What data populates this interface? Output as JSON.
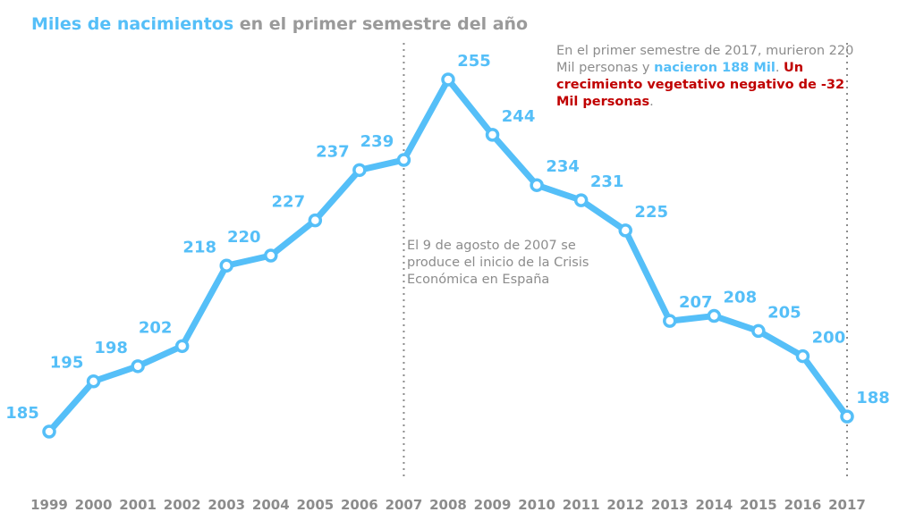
{
  "chart_data": {
    "type": "line",
    "title_highlight": "Miles de nacimientos",
    "title_rest": " en el primer semestre del año",
    "categories": [
      "1999",
      "2000",
      "2001",
      "2002",
      "2003",
      "2004",
      "2005",
      "2006",
      "2007",
      "2008",
      "2009",
      "2010",
      "2011",
      "2012",
      "2013",
      "2014",
      "2015",
      "2016",
      "2017"
    ],
    "values": [
      185,
      195,
      198,
      202,
      218,
      220,
      227,
      237,
      239,
      255,
      244,
      234,
      231,
      225,
      207,
      208,
      205,
      200,
      188
    ],
    "grid": false,
    "reference_lines": [
      "2007",
      "2017"
    ],
    "colors": {
      "line": "#55bff8",
      "text": "#8c8c8c",
      "alert": "#c00000"
    },
    "annotations": {
      "note_2017": {
        "part1": "En el primer semestre de 2017, murieron 220 Mil personas y ",
        "part2": "nacieron 188 Mil",
        "part3": ". ",
        "part4": "Un crecimiento vegetativo negativo de -32 Mil personas",
        "part5": "."
      },
      "note_2007": "El 9 de agosto de 2007 se produce el inicio de la Crisis Económica en España"
    }
  }
}
